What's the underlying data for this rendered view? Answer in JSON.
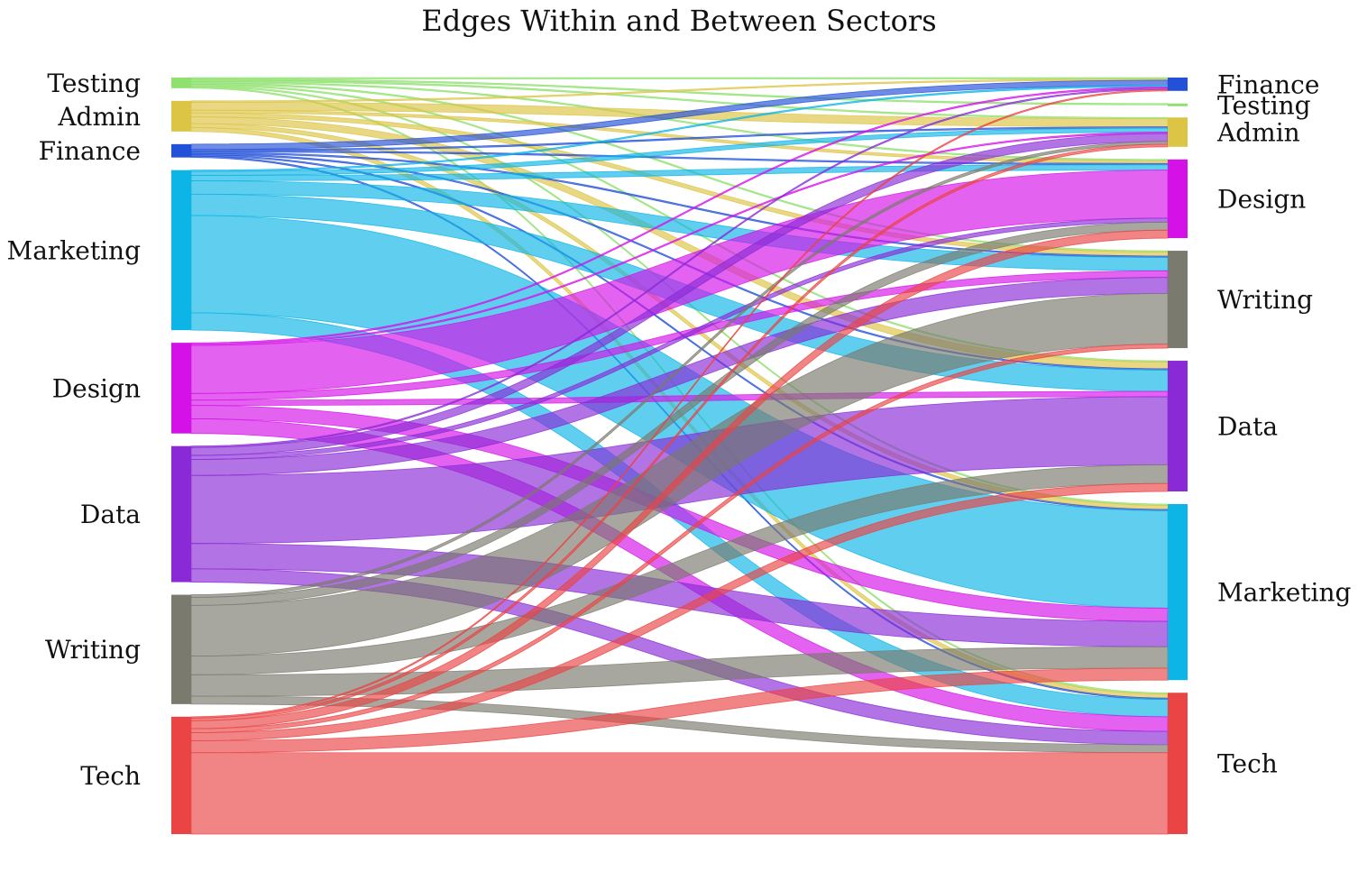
{
  "chart_data": {
    "type": "sankey",
    "title": "Edges Within and Between Sectors",
    "left_nodes": [
      "Testing",
      "Admin",
      "Finance",
      "Marketing",
      "Design",
      "Data",
      "Writing",
      "Tech"
    ],
    "right_nodes": [
      "Finance",
      "Testing",
      "Admin",
      "Design",
      "Writing",
      "Data",
      "Marketing",
      "Tech"
    ],
    "colors": {
      "Testing": "#8fe06e",
      "Admin": "#dcc444",
      "Finance": "#2350d8",
      "Marketing": "#0db4e6",
      "Design": "#d412e8",
      "Data": "#8a2ad6",
      "Writing": "#7a7a6e",
      "Tech": "#ea4444"
    },
    "flows": [
      {
        "source": "Testing",
        "target": "Finance",
        "value": 1
      },
      {
        "source": "Testing",
        "target": "Testing",
        "value": 1
      },
      {
        "source": "Testing",
        "target": "Admin",
        "value": 1
      },
      {
        "source": "Testing",
        "target": "Design",
        "value": 1
      },
      {
        "source": "Testing",
        "target": "Writing",
        "value": 1
      },
      {
        "source": "Testing",
        "target": "Data",
        "value": 1
      },
      {
        "source": "Testing",
        "target": "Marketing",
        "value": 1
      },
      {
        "source": "Testing",
        "target": "Tech",
        "value": 1
      },
      {
        "source": "Admin",
        "target": "Finance",
        "value": 1
      },
      {
        "source": "Admin",
        "target": "Admin",
        "value": 6
      },
      {
        "source": "Admin",
        "target": "Design",
        "value": 2
      },
      {
        "source": "Admin",
        "target": "Writing",
        "value": 3
      },
      {
        "source": "Admin",
        "target": "Data",
        "value": 5
      },
      {
        "source": "Admin",
        "target": "Marketing",
        "value": 3
      },
      {
        "source": "Admin",
        "target": "Tech",
        "value": 3
      },
      {
        "source": "Finance",
        "target": "Finance",
        "value": 4
      },
      {
        "source": "Finance",
        "target": "Admin",
        "value": 1
      },
      {
        "source": "Finance",
        "target": "Design",
        "value": 1
      },
      {
        "source": "Finance",
        "target": "Writing",
        "value": 1
      },
      {
        "source": "Finance",
        "target": "Data",
        "value": 1
      },
      {
        "source": "Finance",
        "target": "Marketing",
        "value": 1
      },
      {
        "source": "Finance",
        "target": "Tech",
        "value": 1
      },
      {
        "source": "Marketing",
        "target": "Finance",
        "value": 1
      },
      {
        "source": "Marketing",
        "target": "Admin",
        "value": 3
      },
      {
        "source": "Marketing",
        "target": "Design",
        "value": 4
      },
      {
        "source": "Marketing",
        "target": "Writing",
        "value": 10
      },
      {
        "source": "Marketing",
        "target": "Data",
        "value": 16
      },
      {
        "source": "Marketing",
        "target": "Marketing",
        "value": 73
      },
      {
        "source": "Marketing",
        "target": "Tech",
        "value": 13
      },
      {
        "source": "Design",
        "target": "Finance",
        "value": 1
      },
      {
        "source": "Design",
        "target": "Admin",
        "value": 1
      },
      {
        "source": "Design",
        "target": "Design",
        "value": 36
      },
      {
        "source": "Design",
        "target": "Writing",
        "value": 5
      },
      {
        "source": "Design",
        "target": "Data",
        "value": 4
      },
      {
        "source": "Design",
        "target": "Marketing",
        "value": 10
      },
      {
        "source": "Design",
        "target": "Tech",
        "value": 11
      },
      {
        "source": "Data",
        "target": "Finance",
        "value": 1
      },
      {
        "source": "Data",
        "target": "Admin",
        "value": 6
      },
      {
        "source": "Data",
        "target": "Design",
        "value": 3
      },
      {
        "source": "Data",
        "target": "Writing",
        "value": 12
      },
      {
        "source": "Data",
        "target": "Data",
        "value": 51
      },
      {
        "source": "Data",
        "target": "Marketing",
        "value": 19
      },
      {
        "source": "Data",
        "target": "Tech",
        "value": 10
      },
      {
        "source": "Writing",
        "target": "Admin",
        "value": 2
      },
      {
        "source": "Writing",
        "target": "Design",
        "value": 6
      },
      {
        "source": "Writing",
        "target": "Writing",
        "value": 38
      },
      {
        "source": "Writing",
        "target": "Data",
        "value": 14
      },
      {
        "source": "Writing",
        "target": "Marketing",
        "value": 16
      },
      {
        "source": "Writing",
        "target": "Tech",
        "value": 6
      },
      {
        "source": "Tech",
        "target": "Finance",
        "value": 1
      },
      {
        "source": "Tech",
        "target": "Admin",
        "value": 2
      },
      {
        "source": "Tech",
        "target": "Design",
        "value": 6
      },
      {
        "source": "Tech",
        "target": "Writing",
        "value": 3
      },
      {
        "source": "Tech",
        "target": "Data",
        "value": 6
      },
      {
        "source": "Tech",
        "target": "Marketing",
        "value": 9
      },
      {
        "source": "Tech",
        "target": "Tech",
        "value": 61
      }
    ]
  }
}
